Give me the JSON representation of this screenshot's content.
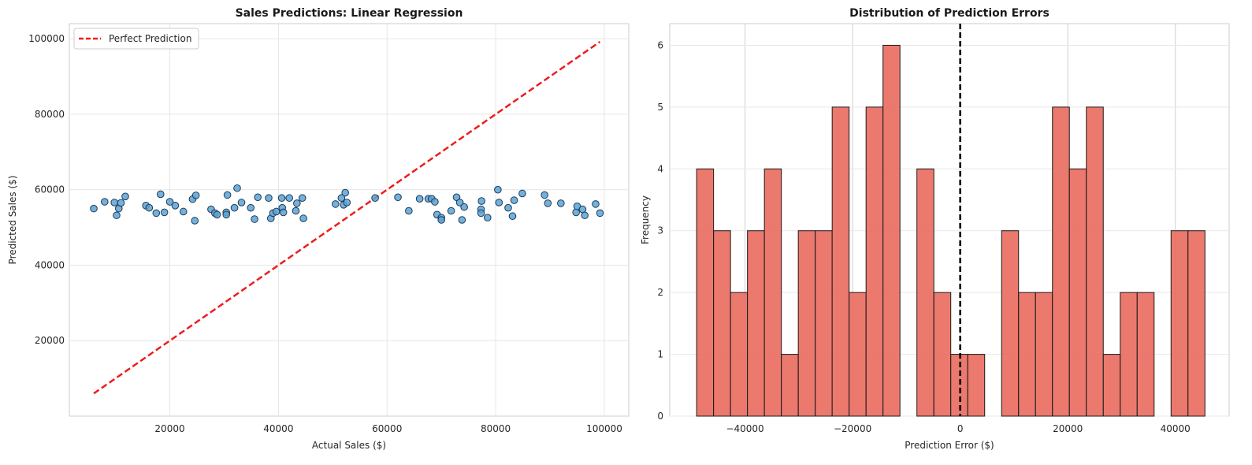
{
  "chart_data": [
    {
      "type": "scatter",
      "title": "Sales Predictions: Linear Regression",
      "xlabel": "Actual Sales ($)",
      "ylabel": "Predicted Sales ($)",
      "xlim": [
        1500,
        104500
      ],
      "ylim": [
        0,
        104000
      ],
      "xticks": [
        20000,
        40000,
        60000,
        80000,
        100000
      ],
      "yticks": [
        20000,
        40000,
        60000,
        80000,
        100000
      ],
      "grid": true,
      "legend": {
        "placement": "top-left",
        "entries": [
          "Perfect Prediction"
        ]
      },
      "colors": {
        "points": "#5ba3d6",
        "points_edge": "#1f3a55",
        "line": "#ee1c1c"
      },
      "series": [
        {
          "type": "scatter",
          "points": [
            [
              6000,
              55000
            ],
            [
              8000,
              56800
            ],
            [
              9800,
              56600
            ],
            [
              10200,
              53200
            ],
            [
              10600,
              55000
            ],
            [
              11000,
              56500
            ],
            [
              11800,
              58200
            ],
            [
              15600,
              55800
            ],
            [
              16200,
              55200
            ],
            [
              17500,
              53800
            ],
            [
              18300,
              58800
            ],
            [
              19000,
              54000
            ],
            [
              20000,
              56800
            ],
            [
              21000,
              55800
            ],
            [
              22500,
              54200
            ],
            [
              24200,
              57500
            ],
            [
              24800,
              58500
            ],
            [
              24600,
              51800
            ],
            [
              27600,
              54800
            ],
            [
              28300,
              53800
            ],
            [
              28700,
              53400
            ],
            [
              30400,
              54000
            ],
            [
              30400,
              53400
            ],
            [
              30600,
              58600
            ],
            [
              31900,
              55200
            ],
            [
              32400,
              60400
            ],
            [
              33200,
              56600
            ],
            [
              34900,
              55200
            ],
            [
              35600,
              52200
            ],
            [
              36200,
              58000
            ],
            [
              38200,
              57800
            ],
            [
              38600,
              52400
            ],
            [
              39000,
              53800
            ],
            [
              39600,
              54200
            ],
            [
              40600,
              57800
            ],
            [
              40700,
              55200
            ],
            [
              40900,
              54000
            ],
            [
              42000,
              57800
            ],
            [
              43200,
              54400
            ],
            [
              43400,
              56400
            ],
            [
              44400,
              57800
            ],
            [
              44600,
              52400
            ],
            [
              50500,
              56200
            ],
            [
              51600,
              57800
            ],
            [
              52000,
              56000
            ],
            [
              52300,
              59200
            ],
            [
              52600,
              56600
            ],
            [
              57800,
              57800
            ],
            [
              62000,
              58000
            ],
            [
              64000,
              54400
            ],
            [
              66000,
              57600
            ],
            [
              67600,
              57600
            ],
            [
              68200,
              57600
            ],
            [
              68800,
              56800
            ],
            [
              69200,
              53400
            ],
            [
              70000,
              52600
            ],
            [
              70000,
              52000
            ],
            [
              71800,
              54400
            ],
            [
              72800,
              58000
            ],
            [
              73400,
              56600
            ],
            [
              73800,
              52000
            ],
            [
              74200,
              55400
            ],
            [
              77400,
              57000
            ],
            [
              77300,
              54800
            ],
            [
              77300,
              53800
            ],
            [
              78500,
              52600
            ],
            [
              80400,
              60000
            ],
            [
              80600,
              56600
            ],
            [
              82300,
              55200
            ],
            [
              83100,
              53000
            ],
            [
              83400,
              57200
            ],
            [
              84900,
              59000
            ],
            [
              89000,
              58600
            ],
            [
              89600,
              56400
            ],
            [
              92000,
              56400
            ],
            [
              94800,
              54000
            ],
            [
              95000,
              55600
            ],
            [
              96000,
              54800
            ],
            [
              96400,
              53200
            ],
            [
              98400,
              56200
            ],
            [
              99200,
              53800
            ]
          ]
        },
        {
          "type": "line",
          "name": "Perfect Prediction",
          "x": [
            6000,
            99200
          ],
          "y": [
            6000,
            99200
          ]
        }
      ]
    },
    {
      "type": "bar",
      "subtype": "histogram",
      "title": "Distribution of Prediction Errors",
      "xlabel": "Prediction Error ($)",
      "ylabel": "Frequency",
      "xlim": [
        -54000,
        50000
      ],
      "ylim": [
        0,
        6.35
      ],
      "xticks": [
        -40000,
        -20000,
        0,
        20000,
        40000
      ],
      "yticks": [
        0,
        1,
        2,
        3,
        4,
        5,
        6
      ],
      "grid": true,
      "colors": {
        "bars": "#e8675a",
        "bars_edge": "#1a1a1a",
        "vline": "#000000"
      },
      "vline_x": 0,
      "bins": {
        "start": -49000,
        "width": 3150
      },
      "values": [
        4,
        3,
        2,
        3,
        4,
        1,
        3,
        3,
        5,
        2,
        5,
        6,
        0,
        4,
        2,
        1,
        1,
        0,
        3,
        2,
        2,
        5,
        4,
        5,
        1,
        2,
        2,
        0,
        3,
        3
      ]
    }
  ]
}
